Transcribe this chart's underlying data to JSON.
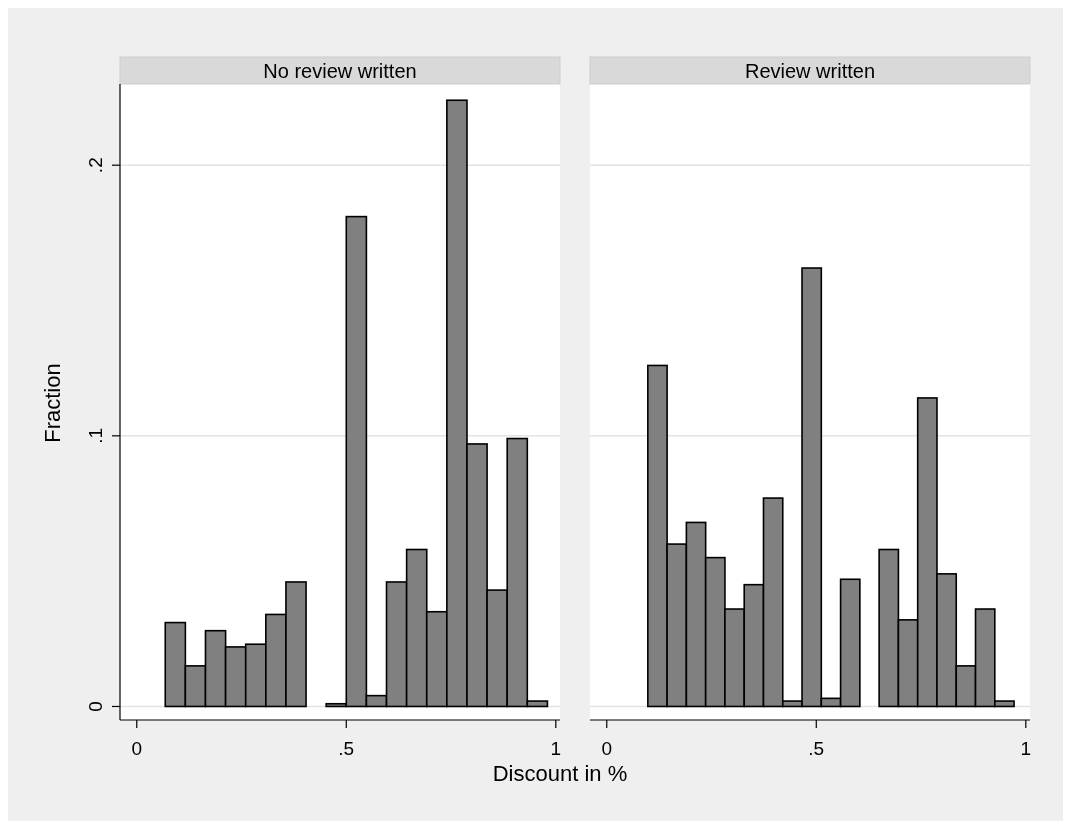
{
  "chart_data": [
    {
      "type": "histogram",
      "title": "No review written",
      "xlabel": "Discount in %",
      "ylabel": "Fraction",
      "color": "#808080",
      "bins": [
        0.02,
        0.068,
        0.116,
        0.164,
        0.212,
        0.26,
        0.308,
        0.356,
        0.404,
        0.452,
        0.5,
        0.548,
        0.596,
        0.644,
        0.692,
        0.74,
        0.788,
        0.836,
        0.884,
        0.932,
        0.98
      ],
      "values": [
        0,
        0.031,
        0.015,
        0.028,
        0.022,
        0.023,
        0.034,
        0.046,
        0,
        0.001,
        0.181,
        0.004,
        0.046,
        0.058,
        0.035,
        0.224,
        0.097,
        0.043,
        0.099,
        0.002
      ],
      "xlim": [
        -0.04,
        1.01
      ],
      "ylim": [
        -0.005,
        0.23
      ],
      "xticks": [
        {
          "value": 0,
          "label": "0"
        },
        {
          "value": 0.5,
          "label": ".5"
        },
        {
          "value": 1,
          "label": "1"
        }
      ],
      "yticks": [
        0,
        {
          "value": 0.1,
          "label": ".1"
        },
        {
          "value": 0.2,
          "label": ".2"
        }
      ],
      "grid": "y"
    },
    {
      "type": "histogram",
      "title": "Review written",
      "color": "#808080",
      "bins": [
        0.052,
        0.098,
        0.144,
        0.19,
        0.236,
        0.282,
        0.328,
        0.374,
        0.42,
        0.466,
        0.512,
        0.558,
        0.604,
        0.65,
        0.696,
        0.742,
        0.788,
        0.834,
        0.88,
        0.926,
        0.972
      ],
      "values": [
        0,
        0.126,
        0.06,
        0.068,
        0.055,
        0.036,
        0.045,
        0.077,
        0.002,
        0.162,
        0.003,
        0.047,
        0,
        0.058,
        0.032,
        0.114,
        0.049,
        0.015,
        0.036,
        0.002
      ],
      "xlim": [
        -0.04,
        1.01
      ],
      "ylim": [
        -0.005,
        0.23
      ],
      "xticks": [
        {
          "value": 0,
          "label": "0"
        },
        {
          "value": 0.5,
          "label": ".5"
        },
        {
          "value": 1,
          "label": "1"
        }
      ],
      "yticks": [
        {
          "value": 0,
          "label": null
        },
        {
          "value": 0.1,
          "label": null
        },
        {
          "value": 0.2,
          "label": null
        }
      ],
      "grid": "y",
      "tick_labels": "x"
    }
  ]
}
